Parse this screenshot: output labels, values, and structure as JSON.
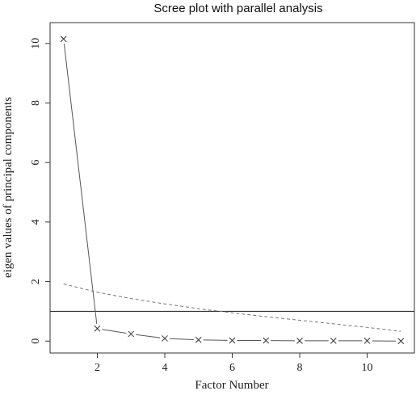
{
  "chart_data": {
    "type": "line",
    "title": "Scree plot with parallel analysis",
    "xlabel": "Factor Number",
    "ylabel": "eigen values of principal components",
    "xlim": [
      0.6,
      11.4
    ],
    "ylim": [
      -0.4,
      10.7
    ],
    "x_ticks": [
      2,
      4,
      6,
      8,
      10
    ],
    "y_ticks": [
      0,
      2,
      4,
      6,
      8,
      10
    ],
    "grid": false,
    "reference_line": {
      "y": 1,
      "color": "#333333"
    },
    "series": [
      {
        "style": "solid-with-x-markers",
        "color": "#555555",
        "x": [
          1,
          2,
          3,
          4,
          5,
          6,
          7,
          8,
          9,
          10,
          11
        ],
        "values": [
          10.15,
          0.42,
          0.24,
          0.09,
          0.04,
          0.02,
          0.02,
          0.01,
          0.01,
          0.01,
          0.0
        ]
      },
      {
        "style": "dashed",
        "color": "#777777",
        "x": [
          1,
          2,
          3,
          4,
          5,
          6,
          7,
          8,
          9,
          10,
          11
        ],
        "values": [
          1.92,
          1.64,
          1.43,
          1.25,
          1.09,
          0.95,
          0.82,
          0.7,
          0.58,
          0.46,
          0.33
        ]
      }
    ]
  }
}
